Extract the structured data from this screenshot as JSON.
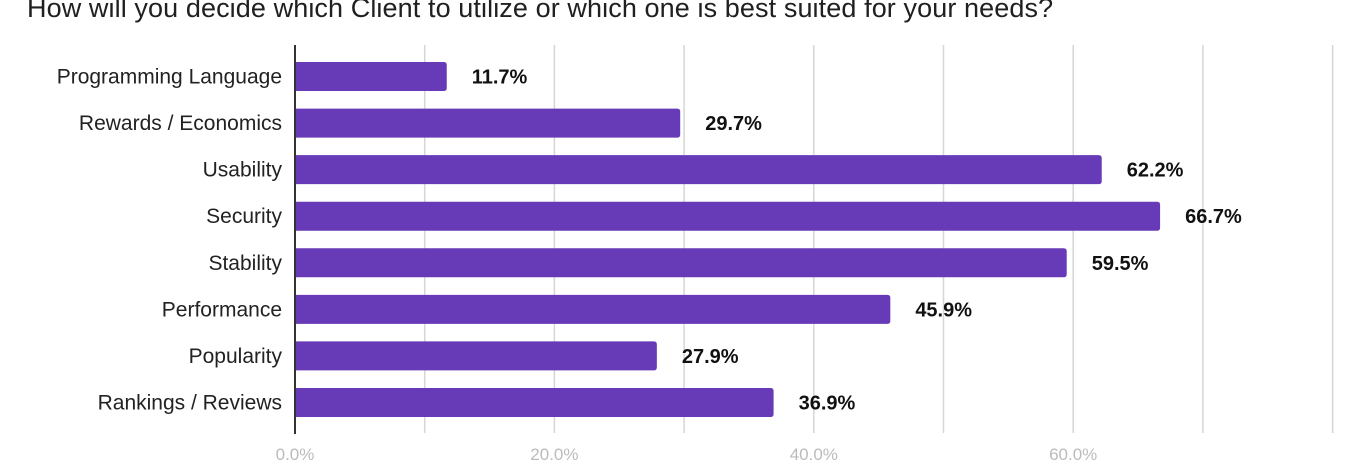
{
  "chart_data": {
    "type": "bar",
    "orientation": "horizontal",
    "title": "How will you decide which Client to utilize or which one is best suited for your needs?",
    "categories": [
      "Programming Language",
      "Rewards / Economics",
      "Usability",
      "Security",
      "Stability",
      "Performance",
      "Popularity",
      "Rankings / Reviews"
    ],
    "values": [
      11.7,
      29.7,
      62.2,
      66.7,
      59.5,
      45.9,
      27.9,
      36.9
    ],
    "value_labels": [
      "11.7%",
      "29.7%",
      "62.2%",
      "66.7%",
      "59.5%",
      "45.9%",
      "27.9%",
      "36.9%"
    ],
    "xlabel": "",
    "ylabel": "",
    "xlim": [
      0,
      80
    ],
    "gridlines": [
      0,
      10,
      20,
      30,
      40,
      50,
      60,
      70,
      80
    ],
    "x_ticks": [
      0,
      20,
      40,
      60
    ],
    "x_tick_labels": [
      "0.0%",
      "20.0%",
      "40.0%",
      "60.0%"
    ],
    "grid": true,
    "legend": "none",
    "bar_color": "#673ab7"
  }
}
